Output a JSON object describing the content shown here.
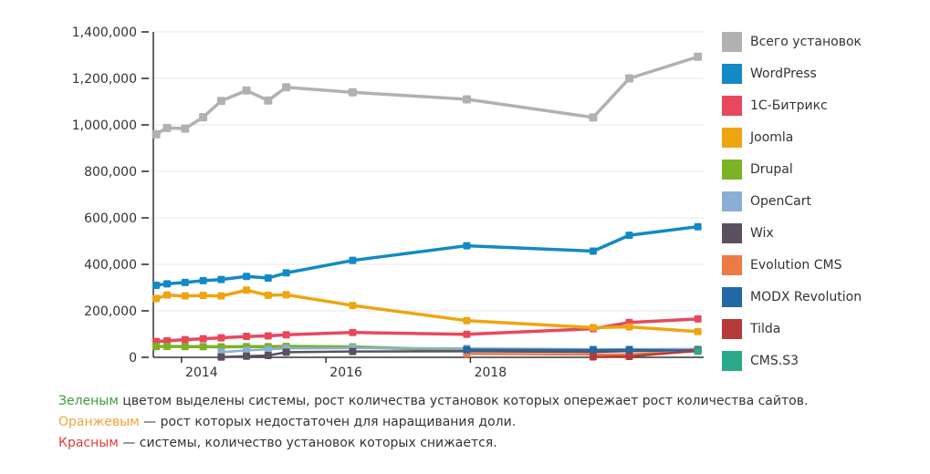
{
  "chart_data": {
    "type": "line",
    "title": "",
    "legend_position": "right",
    "grid": "horizontal",
    "x_range": [
      2013.61,
      2021.23
    ],
    "y_range": [
      0,
      1400000
    ],
    "x": [
      2013.65,
      2013.8,
      2014.05,
      2014.3,
      2014.55,
      2014.9,
      2015.2,
      2015.45,
      2016.37,
      2017.95,
      2019.7,
      2020.2,
      2021.15
    ],
    "x_ticks": [
      {
        "value": 2014,
        "label": "2014"
      },
      {
        "value": 2016,
        "label": "2016"
      },
      {
        "value": 2018,
        "label": "2018"
      }
    ],
    "y_ticks": [
      {
        "value": 0,
        "label": "0"
      },
      {
        "value": 200000,
        "label": "200,000"
      },
      {
        "value": 400000,
        "label": "400,000"
      },
      {
        "value": 600000,
        "label": "600,000"
      },
      {
        "value": 800000,
        "label": "800,000"
      },
      {
        "value": 1000000,
        "label": "1,000,000"
      },
      {
        "value": 1200000,
        "label": "1,200,000"
      },
      {
        "value": 1400000,
        "label": "1,400,000"
      }
    ],
    "series": [
      {
        "name": "Всего установок",
        "color": "#b1b1b1",
        "values": [
          960000,
          987000,
          984000,
          1033000,
          1103000,
          1148000,
          1105000,
          1162000,
          1140000,
          1110000,
          1032000,
          1200000,
          1293000
        ]
      },
      {
        "name": "WordPress",
        "color": "#1389c6",
        "values": [
          310000,
          316000,
          322000,
          330000,
          335000,
          348000,
          341000,
          363000,
          417000,
          480000,
          457000,
          525000,
          562000
        ]
      },
      {
        "name": "1С-Битрикс",
        "color": "#e8485c",
        "values": [
          68000,
          71000,
          76000,
          80000,
          84000,
          90000,
          92000,
          97000,
          107000,
          99000,
          123000,
          150000,
          165000
        ]
      },
      {
        "name": "Joomla",
        "color": "#eda511",
        "values": [
          253000,
          268000,
          264000,
          266000,
          264000,
          289000,
          267000,
          269000,
          223000,
          158000,
          128000,
          131000,
          111000
        ]
      },
      {
        "name": "Drupal",
        "color": "#7cb226",
        "values": [
          46000,
          47000,
          46000,
          46000,
          45000,
          46000,
          46000,
          47000,
          45000,
          30000,
          28000,
          29000,
          30000
        ]
      },
      {
        "name": "OpenCart",
        "color": "#8aaed6",
        "values": [
          null,
          null,
          null,
          null,
          22000,
          30000,
          34000,
          38000,
          40000,
          38000,
          35000,
          35000,
          36000
        ]
      },
      {
        "name": "Wix",
        "color": "#5c5060",
        "values": [
          null,
          null,
          null,
          null,
          1000,
          5000,
          8000,
          22000,
          25000,
          26000,
          23000,
          27000,
          31000
        ]
      },
      {
        "name": "Evolution CMS",
        "color": "#ed7a45",
        "values": [
          null,
          null,
          null,
          null,
          null,
          null,
          null,
          null,
          null,
          15000,
          12000,
          13000,
          26000
        ]
      },
      {
        "name": "MODX Revolution",
        "color": "#2268a5",
        "values": [
          null,
          null,
          null,
          null,
          null,
          null,
          null,
          null,
          null,
          33000,
          31000,
          32000,
          29000
        ]
      },
      {
        "name": "Tilda",
        "color": "#b63a39",
        "values": [
          null,
          null,
          null,
          null,
          null,
          null,
          null,
          null,
          null,
          null,
          2000,
          4000,
          28000
        ]
      },
      {
        "name": "CMS.S3",
        "color": "#2aa98b",
        "values": [
          null,
          null,
          null,
          null,
          null,
          null,
          null,
          null,
          null,
          null,
          null,
          null,
          27000
        ]
      }
    ]
  },
  "footer": {
    "lines": [
      {
        "highlight": "Зеленым",
        "color": "#3f9e3a",
        "rest": " цветом выделены системы, рост количества установок которых опережает рост количества сайтов."
      },
      {
        "highlight": "Оранжевым",
        "color": "#f2a33c",
        "rest": " — рост которых недостаточен для наращивания доли."
      },
      {
        "highlight": "Красным",
        "color": "#e23a3a",
        "rest": " — системы, количество установок которых снижается."
      }
    ]
  }
}
